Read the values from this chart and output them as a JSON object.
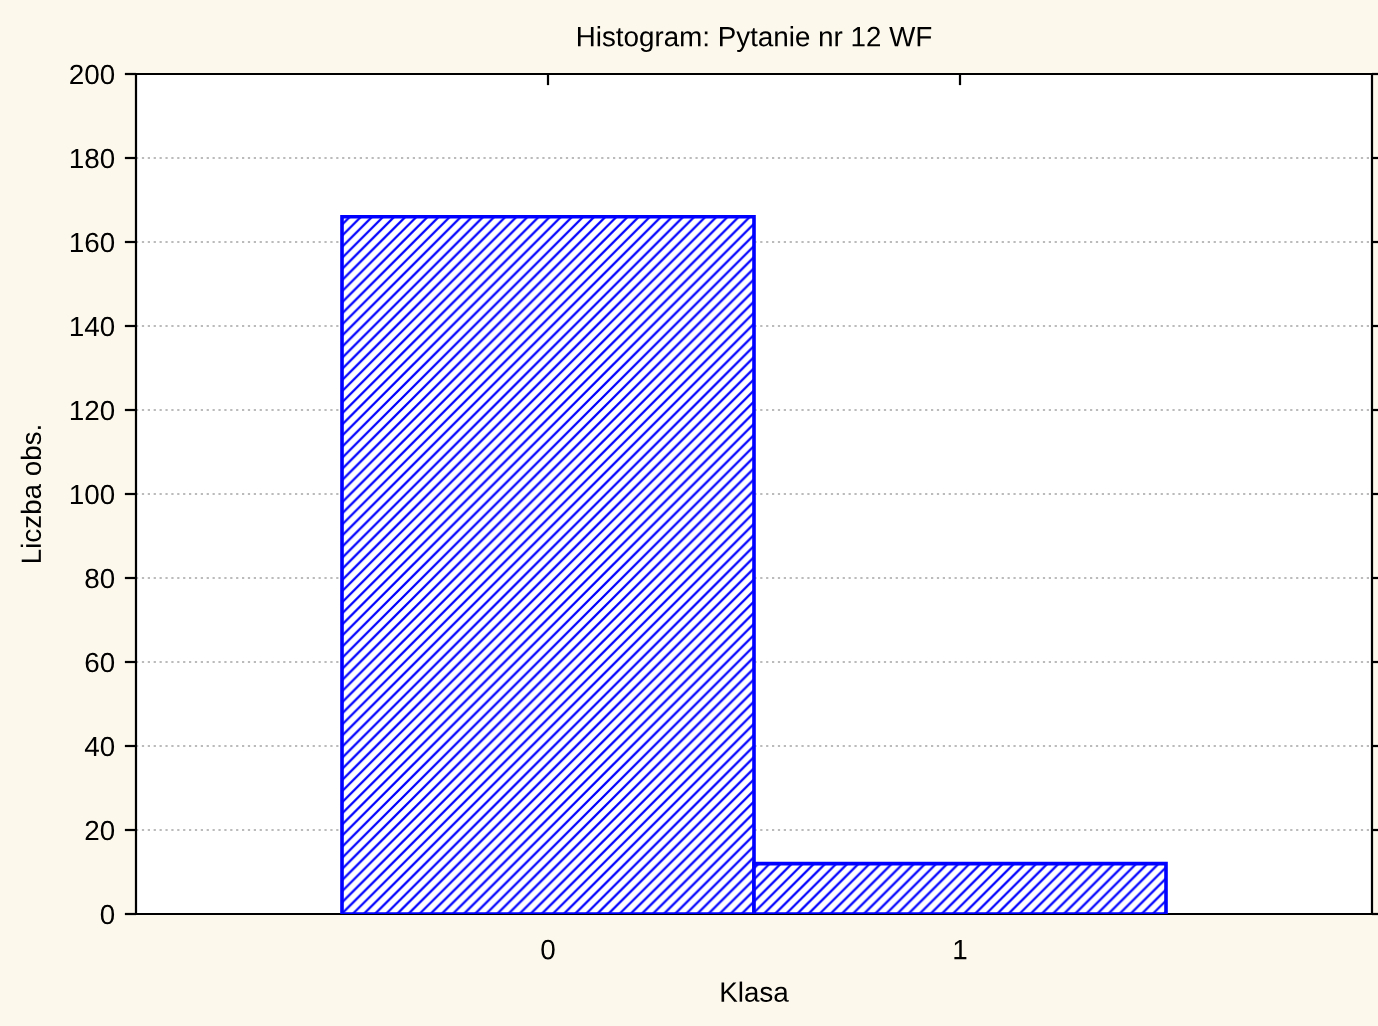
{
  "chart_data": {
    "type": "histogram",
    "title": "Histogram: Pytanie nr 12 WF",
    "xlabel": "Klasa",
    "ylabel": "Liczba obs.",
    "bins": [
      -0.5,
      0.5,
      1.5
    ],
    "values": [
      166,
      12
    ],
    "color": "#0000ff",
    "xlim": [
      -1,
      2
    ],
    "xticks": [
      0,
      1
    ],
    "ylim": [
      0,
      200
    ],
    "yticks": [
      0,
      20,
      40,
      60,
      80,
      100,
      120,
      140,
      160,
      180,
      200
    ],
    "grid": "y"
  }
}
